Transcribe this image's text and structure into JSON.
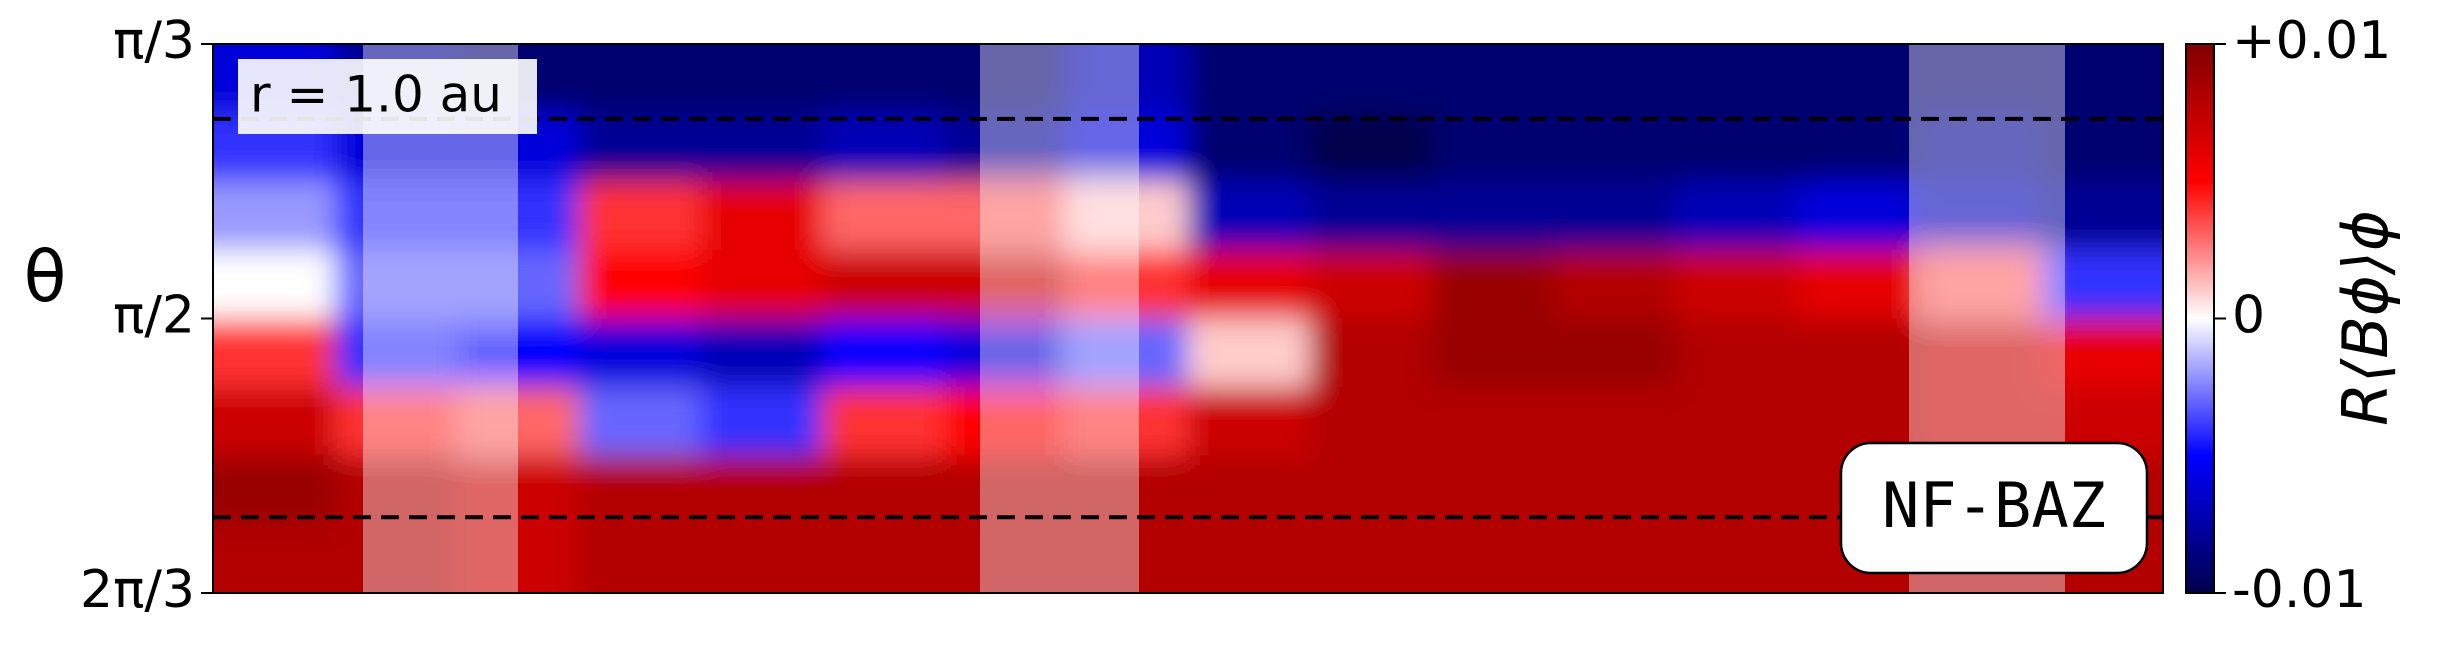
{
  "chart_data": {
    "type": "heatmap",
    "ylabel": "θ",
    "colorbar_label": "R⟨Bϕ⟩ϕ",
    "annotations": [
      "r = 1.0 au",
      "NF-BAZ"
    ],
    "colormap": "seismic",
    "ylim": [
      1.0472,
      2.0944
    ],
    "yticks": [
      {
        "value": 1.0472,
        "label": "π/3"
      },
      {
        "value": 1.5708,
        "label": "π/2"
      },
      {
        "value": 2.0944,
        "label": "2π/3"
      }
    ],
    "clim": [
      -0.01,
      0.01
    ],
    "cticks": [
      {
        "value": 0.01,
        "label": "+0.01"
      },
      0,
      -0.01
    ],
    "hlines": [
      1.19,
      1.95
    ],
    "z": [
      [
        -0.006,
        -0.008,
        -0.009,
        -0.009,
        -0.009,
        -0.009,
        -0.009,
        -0.007,
        -0.009,
        -0.009,
        -0.009,
        -0.009,
        -0.009,
        -0.009,
        -0.009,
        -0.009
      ],
      [
        -0.004,
        -0.006,
        -0.006,
        -0.008,
        -0.008,
        -0.007,
        -0.008,
        -0.006,
        -0.009,
        -0.01,
        -0.009,
        -0.009,
        -0.009,
        -0.009,
        -0.008,
        -0.009
      ],
      [
        -0.002,
        -0.004,
        -0.004,
        0.004,
        0.006,
        0.003,
        0.003,
        0.001,
        -0.007,
        -0.008,
        -0.008,
        -0.008,
        -0.007,
        -0.006,
        -0.007,
        -0.008
      ],
      [
        0.0,
        -0.003,
        -0.003,
        0.005,
        0.006,
        0.007,
        0.007,
        0.004,
        0.006,
        0.007,
        0.009,
        0.008,
        0.007,
        0.006,
        0.003,
        -0.004
      ],
      [
        0.004,
        -0.004,
        -0.005,
        -0.006,
        -0.007,
        -0.005,
        -0.006,
        -0.003,
        0.001,
        0.008,
        0.009,
        0.009,
        0.008,
        0.008,
        0.007,
        0.006
      ],
      [
        0.007,
        0.004,
        0.003,
        -0.003,
        -0.004,
        0.004,
        0.005,
        0.004,
        0.007,
        0.008,
        0.008,
        0.008,
        0.008,
        0.008,
        0.007,
        0.007
      ],
      [
        0.009,
        0.008,
        0.007,
        0.008,
        0.008,
        0.008,
        0.008,
        0.008,
        0.008,
        0.008,
        0.008,
        0.008,
        0.008,
        0.008,
        0.008,
        0.008
      ],
      [
        0.008,
        0.008,
        0.007,
        0.008,
        0.008,
        0.008,
        0.008,
        0.008,
        0.008,
        0.008,
        0.008,
        0.008,
        0.008,
        0.008,
        0.008,
        0.008
      ]
    ]
  }
}
